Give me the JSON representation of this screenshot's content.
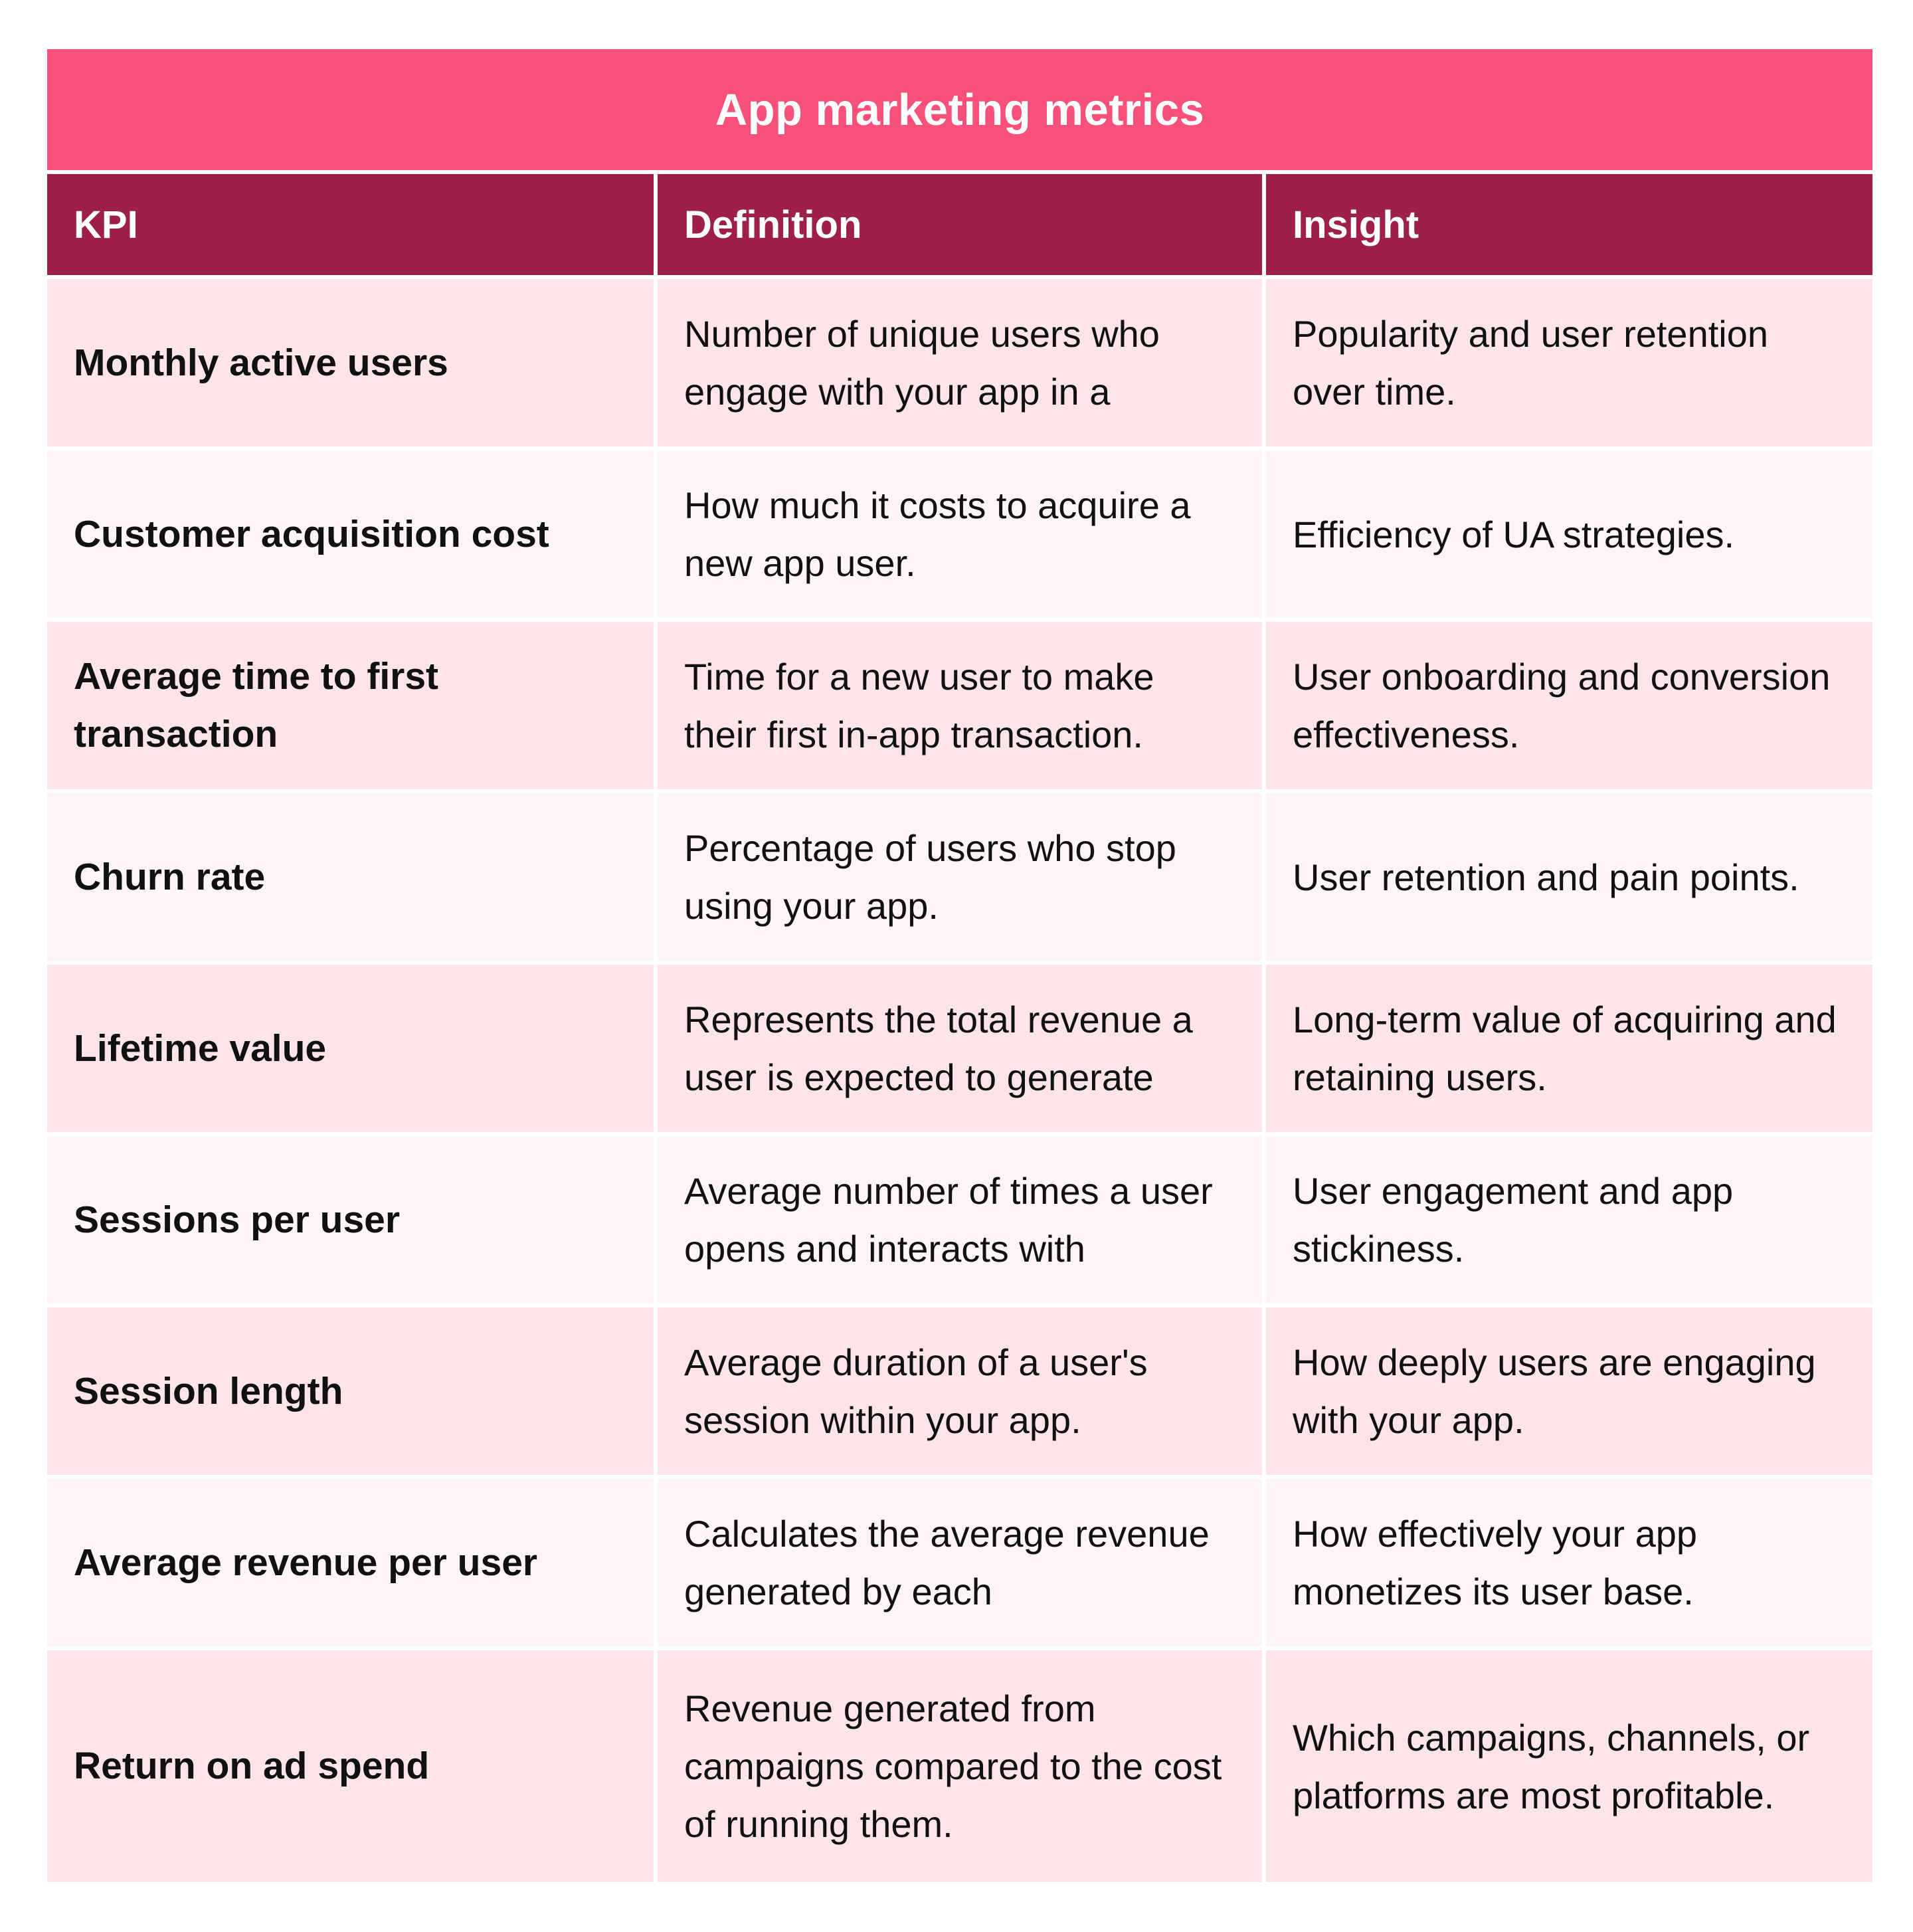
{
  "title": "App marketing metrics",
  "headers": {
    "kpi": "KPI",
    "definition": "Definition",
    "insight": "Insight"
  },
  "rows": [
    {
      "kpi": "Monthly active users",
      "definition": "Number of unique users who engage with your app in a",
      "insight": "Popularity and user retention over time."
    },
    {
      "kpi": "Customer acquisition cost",
      "definition": "How much it costs to acquire a new app user.",
      "insight": "Efficiency of UA strategies."
    },
    {
      "kpi": "Average time to first transaction",
      "definition": "Time for a new user to make their first in-app transaction.",
      "insight": "User onboarding and conversion effectiveness."
    },
    {
      "kpi": "Churn rate",
      "definition": "Percentage of users who stop using your app.",
      "insight": "User retention and pain points."
    },
    {
      "kpi": "Lifetime value",
      "definition": "Represents the total revenue a user is expected to generate",
      "insight": "Long-term value of acquiring and retaining users."
    },
    {
      "kpi": "Sessions per user",
      "definition": "Average number of times a user opens and interacts with",
      "insight": "User engagement and app stickiness."
    },
    {
      "kpi": "Session length",
      "definition": "Average duration of a user's session within your app.",
      "insight": "How deeply users are engaging with your app."
    },
    {
      "kpi": "Average revenue per user",
      "definition": "Calculates the average revenue generated by each",
      "insight": "How effectively your app monetizes its user base."
    },
    {
      "kpi": "Return on ad spend",
      "definition": "Revenue generated from campaigns compared to the cost of running them.",
      "insight": "Which campaigns, channels, or platforms are most profitable."
    }
  ]
}
